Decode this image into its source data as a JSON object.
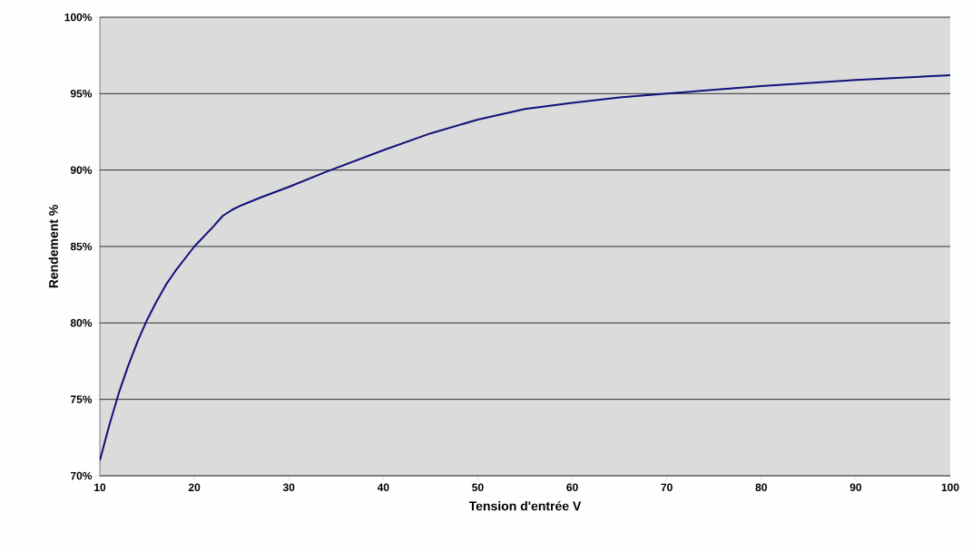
{
  "chart_data": {
    "type": "line",
    "xlabel": "Tension d'entrée V",
    "ylabel": "Rendement %",
    "x": [
      10,
      11,
      12,
      13,
      14,
      15,
      16,
      17,
      18,
      20,
      22,
      23,
      24,
      25,
      27,
      30,
      34,
      40,
      45,
      50,
      55,
      60,
      65,
      70,
      80,
      90,
      100
    ],
    "series": [
      {
        "color": "#10107a",
        "values": [
          71.0,
          73.3,
          75.4,
          77.2,
          78.8,
          80.2,
          81.4,
          82.5,
          83.4,
          85.0,
          86.3,
          87.0,
          87.4,
          87.7,
          88.2,
          88.9,
          89.9,
          91.3,
          92.4,
          93.3,
          94.0,
          94.4,
          94.75,
          95.0,
          95.5,
          95.9,
          96.2
        ]
      }
    ],
    "xlim": [
      10,
      100
    ],
    "ylim": [
      70,
      100
    ],
    "xticks": [
      10,
      20,
      30,
      40,
      50,
      60,
      70,
      80,
      90,
      100
    ],
    "yticks": [
      {
        "value": 70,
        "label": "70%"
      },
      {
        "value": 75,
        "label": "75%"
      },
      {
        "value": 80,
        "label": "80%"
      },
      {
        "value": 85,
        "label": "85%"
      },
      {
        "value": 90,
        "label": "90%"
      },
      {
        "value": 95,
        "label": "95%"
      },
      {
        "value": 100,
        "label": "100%"
      }
    ],
    "grid": "y",
    "marker": "none",
    "line_style": "solid"
  }
}
